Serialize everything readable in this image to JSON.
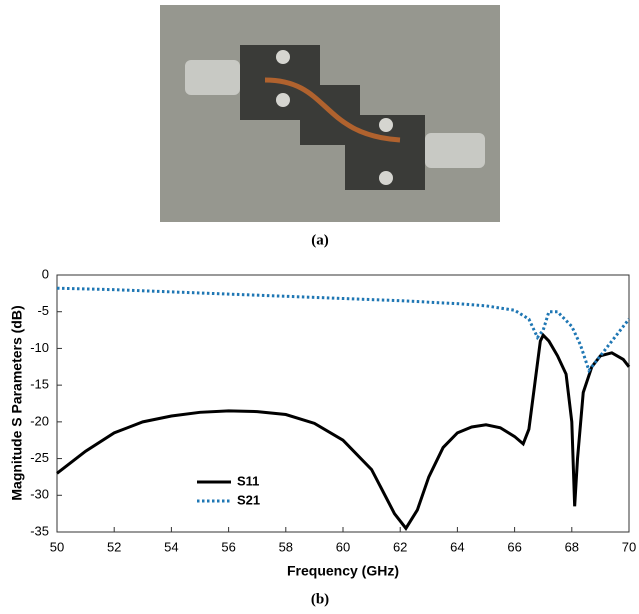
{
  "captions": [
    "(a)",
    "(b)"
  ],
  "chart_data": {
    "type": "line",
    "x_label": "Frequency (GHz)",
    "y_label": "Magnitude S Parameters (dB)",
    "xlim": [
      50,
      70
    ],
    "xticks": [
      50,
      52,
      54,
      56,
      58,
      60,
      62,
      64,
      66,
      68,
      70
    ],
    "ylim": [
      -35,
      0
    ],
    "yticks": [
      0,
      -5,
      -10,
      -15,
      -20,
      -25,
      -30,
      -35
    ],
    "grid": false,
    "legend": "lower left",
    "series": [
      {
        "name": "S11",
        "color": "#000000",
        "dash": "solid",
        "x": [
          50,
          51,
          52,
          53,
          54,
          55,
          56,
          57,
          58,
          59,
          60,
          61,
          61.8,
          62.2,
          62.6,
          63,
          63.5,
          64,
          64.5,
          65,
          65.5,
          66,
          66.3,
          66.5,
          66.7,
          66.9,
          67,
          67.2,
          67.5,
          67.8,
          68,
          68.1,
          68.2,
          68.4,
          68.7,
          69,
          69.4,
          69.8,
          70
        ],
        "values": [
          -27,
          -24,
          -21.5,
          -20,
          -19.2,
          -18.7,
          -18.5,
          -18.6,
          -19,
          -20.2,
          -22.5,
          -26.5,
          -32.5,
          -34.5,
          -32,
          -27.5,
          -23.5,
          -21.5,
          -20.7,
          -20.4,
          -20.8,
          -22,
          -23,
          -21,
          -15,
          -9,
          -8.2,
          -9,
          -11,
          -13.5,
          -20,
          -31.5,
          -25,
          -16,
          -12.5,
          -11,
          -10.6,
          -11.5,
          -12.5
        ]
      },
      {
        "name": "S21",
        "color": "#1f77b4",
        "dash": "dotted",
        "x": [
          50,
          52,
          54,
          56,
          58,
          60,
          62,
          64,
          65,
          66,
          66.5,
          66.8,
          67,
          67.2,
          67.5,
          68,
          68.3,
          68.6,
          69,
          69.5,
          70
        ],
        "values": [
          -1.8,
          -2,
          -2.3,
          -2.6,
          -2.9,
          -3.2,
          -3.5,
          -3.9,
          -4.2,
          -4.8,
          -6,
          -8.5,
          -7.5,
          -5,
          -5,
          -7,
          -9.5,
          -13,
          -11,
          -8.5,
          -6
        ]
      }
    ]
  }
}
